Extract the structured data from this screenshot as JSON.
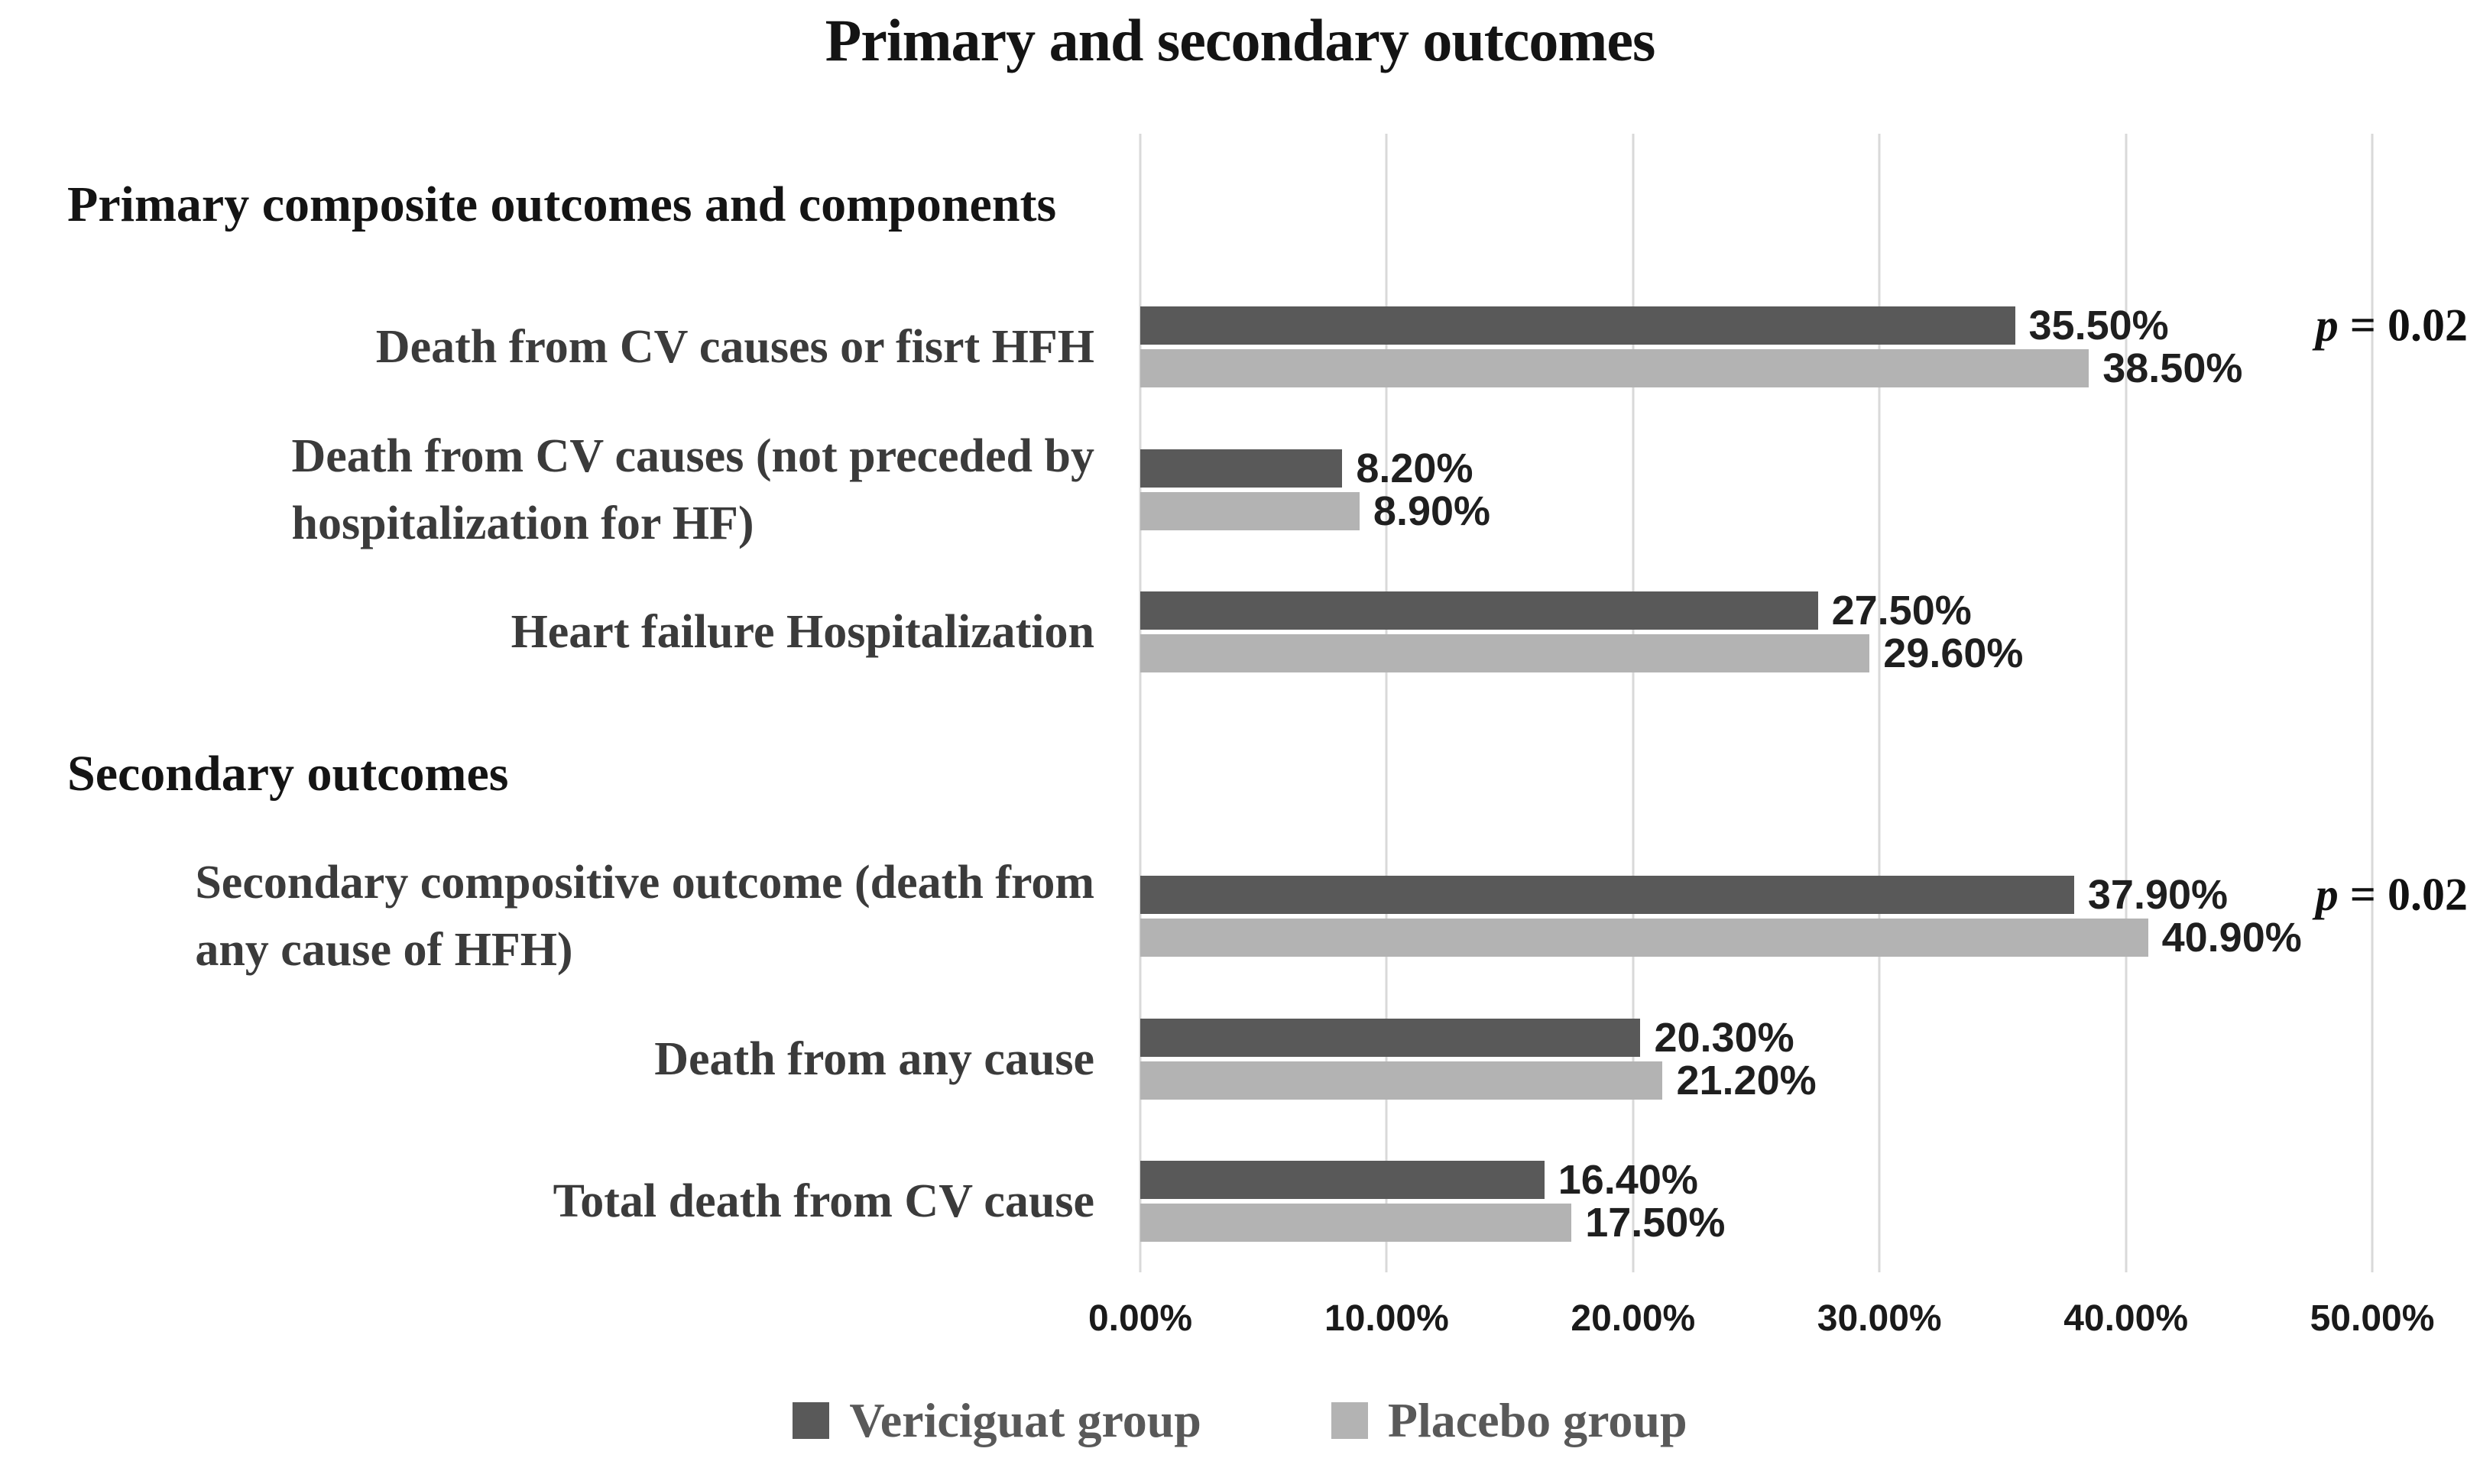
{
  "title": "Primary and secondary outcomes",
  "colors": {
    "vericiguat": "#595959",
    "placebo": "#b3b3b3",
    "gridline": "#d9d9d9"
  },
  "axis": {
    "ticks": [
      "0.00%",
      "10.00%",
      "20.00%",
      "30.00%",
      "40.00%",
      "50.00%"
    ]
  },
  "legend": {
    "items": [
      {
        "label": "Vericiguat group"
      },
      {
        "label": "Placebo group"
      }
    ]
  },
  "rows": [
    {
      "kind": "header",
      "label": "Primary composite outcomes and components"
    },
    {
      "kind": "category",
      "label": "Death from CV causes or fisrt HFH",
      "vericiguat_value": 35.5,
      "vericiguat_label": "35.50%",
      "placebo_value": 38.5,
      "placebo_label": "38.50%",
      "note_p": "p",
      "note_eq": " = 0.02"
    },
    {
      "kind": "category",
      "label": "Death from CV causes (not preceded by\nhospitalization for HF)",
      "vericiguat_value": 8.2,
      "vericiguat_label": "8.20%",
      "placebo_value": 8.9,
      "placebo_label": "8.90%"
    },
    {
      "kind": "category",
      "label": "Heart failure Hospitalization",
      "vericiguat_value": 27.5,
      "vericiguat_label": "27.50%",
      "placebo_value": 29.6,
      "placebo_label": "29.60%"
    },
    {
      "kind": "header",
      "label": "Secondary outcomes"
    },
    {
      "kind": "category",
      "label": "Secondary compositive outcome (death from\nany cause of HFH)",
      "vericiguat_value": 37.9,
      "vericiguat_label": "37.90%",
      "placebo_value": 40.9,
      "placebo_label": "40.90%",
      "note_p": "p",
      "note_eq": " = 0.02"
    },
    {
      "kind": "category",
      "label": "Death from any cause",
      "vericiguat_value": 20.3,
      "vericiguat_label": "20.30%",
      "placebo_value": 21.2,
      "placebo_label": "21.20%"
    },
    {
      "kind": "category",
      "label": "Total death from CV cause",
      "vericiguat_value": 16.4,
      "vericiguat_label": "16.40%",
      "placebo_value": 17.5,
      "placebo_label": "17.50%"
    }
  ],
  "chart_data": {
    "type": "bar",
    "orientation": "horizontal",
    "title": "Primary and secondary outcomes",
    "section_headers": [
      "Primary composite outcomes and components",
      "Secondary outcomes"
    ],
    "categories": [
      "Death from CV causes or fisrt HFH",
      "Death from CV causes (not preceded by hospitalization for HF)",
      "Heart failure Hospitalization",
      "Secondary compositive outcome (death from any cause of HFH)",
      "Death from any cause",
      "Total death from CV cause"
    ],
    "series": [
      {
        "name": "Vericiguat group",
        "color": "#595959",
        "values": [
          35.5,
          8.2,
          27.5,
          37.9,
          20.3,
          16.4
        ]
      },
      {
        "name": "Placebo group",
        "color": "#b3b3b3",
        "values": [
          38.5,
          8.9,
          29.6,
          40.9,
          21.2,
          17.5
        ]
      }
    ],
    "data_labels": [
      "35.50%",
      "38.50%",
      "8.20%",
      "8.90%",
      "27.50%",
      "29.60%",
      "37.90%",
      "40.90%",
      "20.30%",
      "21.20%",
      "16.40%",
      "17.50%"
    ],
    "annotations": [
      {
        "category": "Death from CV causes or fisrt HFH",
        "text": "p = 0.02"
      },
      {
        "category": "Secondary compositive outcome (death from any cause of HFH)",
        "text": "p = 0.02"
      }
    ],
    "xlim": [
      0,
      50
    ],
    "x_ticks": [
      "0.00%",
      "10.00%",
      "20.00%",
      "30.00%",
      "40.00%",
      "50.00%"
    ],
    "grid": "vertical",
    "legend_position": "bottom"
  }
}
